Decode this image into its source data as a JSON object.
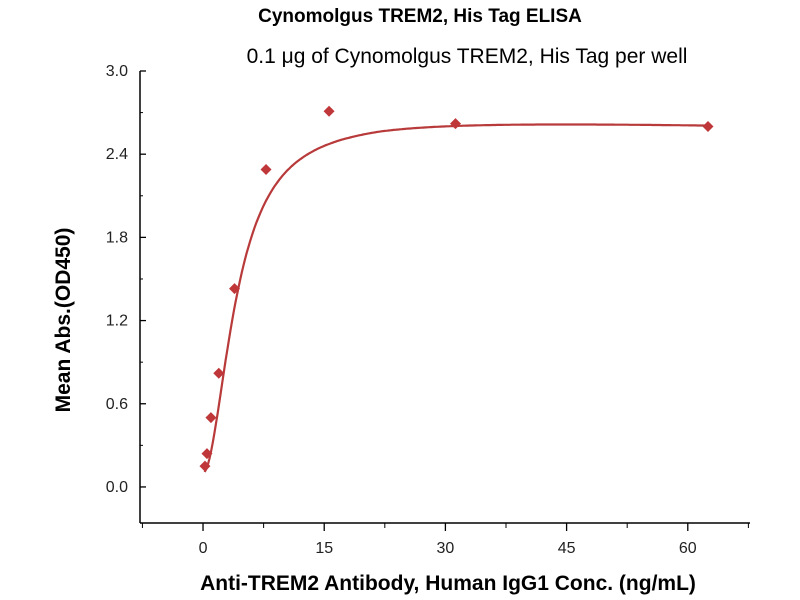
{
  "chart_data": {
    "type": "scatter",
    "title": "Cynomolgus TREM2, His Tag ELISA",
    "subtitle": "0.1 μg of Cynomolgus TREM2, His Tag per well",
    "xlabel": "Anti-TREM2 Antibody, Human IgG1 Conc. (ng/mL)",
    "ylabel": "Mean Abs.(OD450)",
    "xlim": [
      -7.8,
      67.7
    ],
    "ylim": [
      -0.26,
      3.0
    ],
    "xticks": [
      0,
      15,
      30,
      45,
      60
    ],
    "xtick_labels": [
      "0",
      "15",
      "30",
      "45",
      "60"
    ],
    "yticks": [
      0.0,
      0.6,
      1.2,
      1.8,
      2.4,
      3.0
    ],
    "ytick_labels": [
      "0.0",
      "0.6",
      "1.2",
      "1.8",
      "2.4",
      "3.0"
    ],
    "grid": false,
    "series": [
      {
        "name": "Mean Abs.",
        "color": "#c0373a",
        "marker": "diamond",
        "fit": "sigmoidal curve",
        "x": [
          0.24,
          0.49,
          0.98,
          1.95,
          3.9,
          7.8,
          15.6,
          31.25,
          62.5
        ],
        "y": [
          0.15,
          0.24,
          0.5,
          0.82,
          1.43,
          2.29,
          2.71,
          2.62,
          2.6
        ]
      }
    ]
  }
}
